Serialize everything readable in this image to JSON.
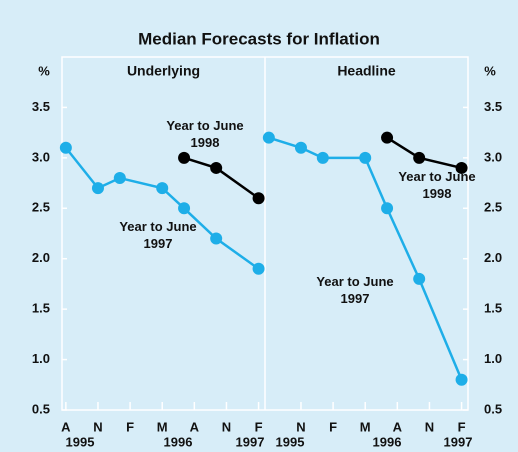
{
  "title": "Median Forecasts for Inflation",
  "y_unit": "%",
  "chart_data": [
    {
      "type": "line",
      "title": "Underlying",
      "xlim": [
        1995.55,
        1997.13
      ],
      "ylim": [
        0.5,
        4.0
      ],
      "yticks": [
        0.5,
        {
          "value": 1.0,
          "label": "1.0"
        },
        1.5,
        {
          "value": 2.0,
          "label": "2.0"
        },
        2.5,
        {
          "value": 3.0,
          "label": "3.0"
        },
        3.5
      ],
      "xticks": [
        {
          "value": 1995.58,
          "label": "A"
        },
        {
          "value": 1995.83,
          "label": "N"
        },
        {
          "value": 1996.08,
          "label": "F"
        },
        {
          "value": 1996.33,
          "label": "M"
        },
        {
          "value": 1996.58,
          "label": "A"
        },
        {
          "value": 1996.83,
          "label": "N"
        },
        {
          "value": 1997.08,
          "label": "F"
        }
      ],
      "years": [
        "1995",
        "1996",
        "1997"
      ],
      "series": [
        {
          "name": "Year to June 1997",
          "color": "#1eaee8",
          "x": [
            1995.58,
            1995.83,
            1996.0,
            1996.33,
            1996.5,
            1996.75,
            1997.08
          ],
          "values": [
            3.1,
            2.7,
            2.8,
            2.7,
            2.5,
            2.2,
            1.9
          ]
        },
        {
          "name": "Year to June 1998",
          "color": "#000000",
          "x": [
            1996.5,
            1996.75,
            1997.08
          ],
          "values": [
            3.0,
            2.9,
            2.6
          ]
        }
      ]
    },
    {
      "type": "line",
      "title": "Headline",
      "xlim": [
        1995.55,
        1997.13
      ],
      "ylim": [
        0.5,
        4.0
      ],
      "yticks": [
        0.5,
        {
          "value": 1.0,
          "label": "1.0"
        },
        1.5,
        {
          "value": 2.0,
          "label": "2.0"
        },
        2.5,
        {
          "value": 3.0,
          "label": "3.0"
        },
        3.5
      ],
      "xticks": [
        {
          "value": 1995.83,
          "label": "N"
        },
        {
          "value": 1996.08,
          "label": "F"
        },
        {
          "value": 1996.33,
          "label": "M"
        },
        {
          "value": 1996.58,
          "label": "A"
        },
        {
          "value": 1996.83,
          "label": "N"
        },
        {
          "value": 1997.08,
          "label": "F"
        }
      ],
      "years": [
        "1995",
        "1996",
        "1997"
      ],
      "series": [
        {
          "name": "Year to June 1997",
          "color": "#1eaee8",
          "x": [
            1995.58,
            1995.83,
            1996.0,
            1996.33,
            1996.5,
            1996.75,
            1997.08
          ],
          "values": [
            3.2,
            3.1,
            3.0,
            3.0,
            2.5,
            1.8,
            0.8
          ]
        },
        {
          "name": "Year to June 1998",
          "color": "#000000",
          "x": [
            1996.5,
            1996.75,
            1997.08
          ],
          "values": [
            3.2,
            3.0,
            2.9
          ]
        }
      ]
    }
  ]
}
